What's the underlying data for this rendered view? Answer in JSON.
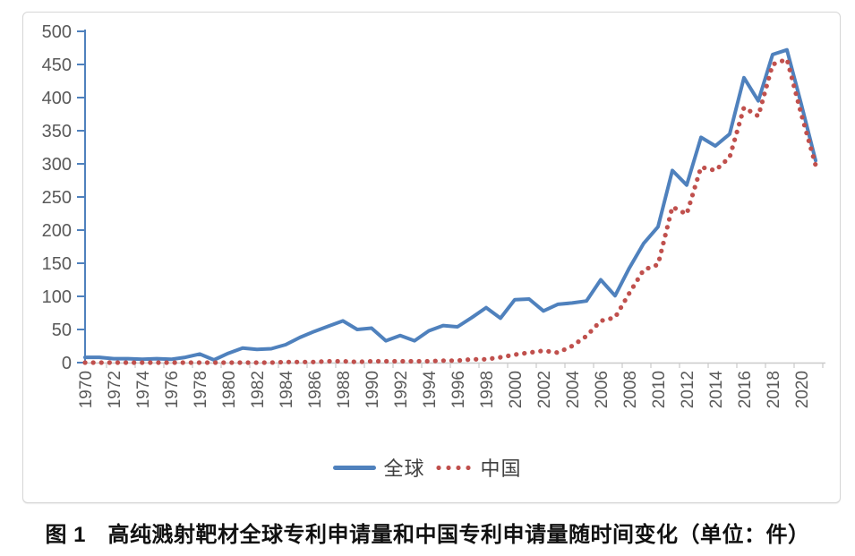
{
  "chart_data": {
    "type": "line",
    "caption": "图 1　高纯溅射靶材全球专利申请量和中国专利申请量随时间变化（单位：件）",
    "x": [
      1970,
      1971,
      1972,
      1973,
      1974,
      1975,
      1976,
      1977,
      1978,
      1979,
      1980,
      1981,
      1982,
      1983,
      1984,
      1985,
      1986,
      1987,
      1988,
      1989,
      1990,
      1991,
      1992,
      1993,
      1994,
      1995,
      1996,
      1997,
      1998,
      1999,
      2000,
      2001,
      2002,
      2003,
      2004,
      2005,
      2006,
      2007,
      2008,
      2009,
      2010,
      2011,
      2012,
      2013,
      2014,
      2015,
      2016,
      2017,
      2018,
      2019,
      2020,
      2021
    ],
    "x_tick_labels": [
      "1970",
      "1972",
      "1974",
      "1976",
      "1978",
      "1980",
      "1982",
      "1984",
      "1986",
      "1988",
      "1990",
      "1992",
      "1994",
      "1996",
      "1998",
      "2000",
      "2002",
      "2004",
      "2006",
      "2008",
      "2010",
      "2012",
      "2014",
      "2016",
      "2018",
      "2020"
    ],
    "y_ticks": [
      0,
      50,
      100,
      150,
      200,
      250,
      300,
      350,
      400,
      450,
      500
    ],
    "ylim": [
      0,
      500
    ],
    "grid": false,
    "legend_position": "bottom",
    "axis_colors": {
      "y_axis": "#4F81BD",
      "x_axis": "#c9c9c9",
      "tick_label": "#595959"
    },
    "series": [
      {
        "name": "全球",
        "style": "solid",
        "color": "#4F81BD",
        "values": [
          8,
          8,
          6,
          6,
          5,
          6,
          5,
          8,
          13,
          4,
          14,
          22,
          20,
          21,
          27,
          38,
          47,
          55,
          63,
          50,
          52,
          33,
          41,
          33,
          48,
          56,
          54,
          68,
          83,
          67,
          95,
          96,
          78,
          88,
          90,
          93,
          125,
          101,
          143,
          180,
          205,
          290,
          268,
          340,
          327,
          345,
          430,
          395,
          465,
          472,
          390,
          305
        ]
      },
      {
        "name": "中国",
        "style": "dotted",
        "color": "#C0504D",
        "values": [
          0,
          0,
          0,
          0,
          0,
          0,
          0,
          0,
          0,
          0,
          0,
          0,
          0,
          0,
          1,
          1,
          1,
          2,
          2,
          1,
          2,
          2,
          2,
          2,
          2,
          3,
          3,
          5,
          5,
          8,
          12,
          15,
          18,
          15,
          25,
          40,
          63,
          68,
          105,
          140,
          148,
          235,
          224,
          295,
          290,
          310,
          385,
          372,
          450,
          458,
          375,
          298
        ]
      }
    ]
  }
}
